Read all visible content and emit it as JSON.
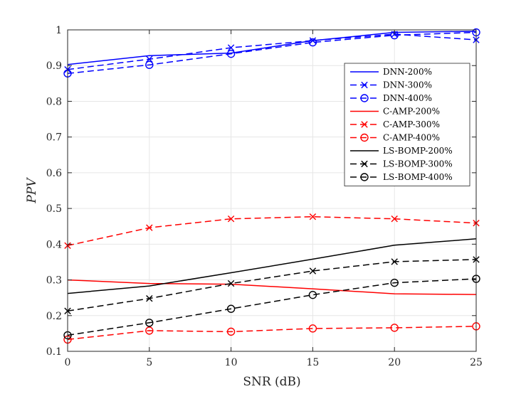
{
  "chart_data": {
    "type": "line",
    "title": "",
    "xlabel": "SNR (dB)",
    "ylabel": "PPV",
    "xlim": [
      0,
      25
    ],
    "ylim": [
      0.1,
      1
    ],
    "xticks": [
      0,
      5,
      10,
      15,
      20,
      25
    ],
    "xtick_labels": [
      "0",
      "5",
      "10",
      "15",
      "20",
      "25"
    ],
    "yticks": [
      0.1,
      0.2,
      0.3,
      0.4,
      0.5,
      0.6,
      0.7,
      0.8,
      0.9,
      1
    ],
    "ytick_labels": [
      "0.1",
      "0.2",
      "0.3",
      "0.4",
      "0.5",
      "0.6",
      "0.7",
      "0.8",
      "0.9",
      "1"
    ],
    "grid": true,
    "legend_position": "top-right",
    "x": [
      0,
      5,
      10,
      15,
      20,
      25
    ],
    "series": [
      {
        "name": "DNN-200%",
        "color": "#0000ff",
        "dash": "solid",
        "marker": "none",
        "values": [
          0.903,
          0.928,
          0.935,
          0.97,
          0.993,
          0.996
        ]
      },
      {
        "name": "DNN-300%",
        "color": "#0000ff",
        "dash": "dashed",
        "marker": "x",
        "values": [
          0.889,
          0.918,
          0.95,
          0.97,
          0.988,
          0.972
        ]
      },
      {
        "name": "DNN-400%",
        "color": "#0000ff",
        "dash": "dashed",
        "marker": "circle",
        "values": [
          0.878,
          0.902,
          0.933,
          0.965,
          0.985,
          0.993
        ]
      },
      {
        "name": "C-AMP-200%",
        "color": "#ff0000",
        "dash": "solid",
        "marker": "none",
        "values": [
          0.3,
          0.29,
          0.288,
          0.275,
          0.261,
          0.259
        ]
      },
      {
        "name": "C-AMP-300%",
        "color": "#ff0000",
        "dash": "dashed",
        "marker": "x",
        "values": [
          0.396,
          0.446,
          0.471,
          0.477,
          0.471,
          0.459
        ]
      },
      {
        "name": "C-AMP-400%",
        "color": "#ff0000",
        "dash": "dashed",
        "marker": "circle",
        "values": [
          0.133,
          0.158,
          0.155,
          0.164,
          0.166,
          0.17
        ]
      },
      {
        "name": "LS-BOMP-200%",
        "color": "#000000",
        "dash": "solid",
        "marker": "none",
        "values": [
          0.262,
          0.283,
          0.32,
          0.358,
          0.397,
          0.415
        ]
      },
      {
        "name": "LS-BOMP-300%",
        "color": "#000000",
        "dash": "dashed",
        "marker": "x",
        "values": [
          0.213,
          0.248,
          0.29,
          0.325,
          0.351,
          0.357
        ]
      },
      {
        "name": "LS-BOMP-400%",
        "color": "#000000",
        "dash": "dashed",
        "marker": "circle",
        "values": [
          0.145,
          0.18,
          0.219,
          0.258,
          0.292,
          0.303
        ]
      }
    ]
  }
}
